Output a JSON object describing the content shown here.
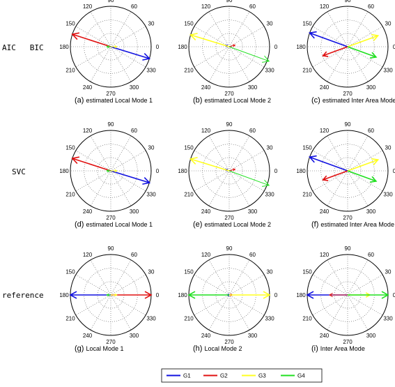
{
  "row_labels": {
    "row1": "AIC   BIC",
    "row2": "SVC",
    "row3": "reference"
  },
  "angle_labels": [
    "90",
    "60",
    "30",
    "0",
    "330",
    "300",
    "270",
    "240",
    "210",
    "180",
    "150",
    "120"
  ],
  "panels": [
    {
      "letter": "(a)",
      "title": "estimated Local Mode 1",
      "arrows": [
        {
          "series": "G1",
          "angle": -17,
          "r": 1.0
        },
        {
          "series": "G2",
          "angle": 162,
          "r": 1.0
        },
        {
          "series": "G3",
          "angle": 0,
          "r": 0.15
        },
        {
          "series": "G4",
          "angle": 180,
          "r": 0.1
        }
      ]
    },
    {
      "letter": "(b)",
      "title": "estimated Local Mode 2",
      "arrows": [
        {
          "series": "G1",
          "angle": 160,
          "r": 0.1
        },
        {
          "series": "G2",
          "angle": 15,
          "r": 0.15
        },
        {
          "series": "G3",
          "angle": 163,
          "r": 1.0
        },
        {
          "series": "G4",
          "angle": -20,
          "r": 1.05
        }
      ]
    },
    {
      "letter": "(c)",
      "title": "estimated Inter Area Mode",
      "arrows": [
        {
          "series": "G1",
          "angle": 160,
          "r": 1.0
        },
        {
          "series": "G2",
          "angle": 200,
          "r": 0.65
        },
        {
          "series": "G3",
          "angle": 20,
          "r": 0.8
        },
        {
          "series": "G4",
          "angle": -20,
          "r": 0.75
        }
      ]
    },
    {
      "letter": "(d)",
      "title": "estimated Local Mode 1",
      "arrows": [
        {
          "series": "G1",
          "angle": -17,
          "r": 1.0
        },
        {
          "series": "G2",
          "angle": 162,
          "r": 1.0
        },
        {
          "series": "G3",
          "angle": 0,
          "r": 0.15
        },
        {
          "series": "G4",
          "angle": 180,
          "r": 0.1
        }
      ]
    },
    {
      "letter": "(e)",
      "title": "estimated Local Mode 2",
      "arrows": [
        {
          "series": "G1",
          "angle": 160,
          "r": 0.1
        },
        {
          "series": "G2",
          "angle": 15,
          "r": 0.15
        },
        {
          "series": "G3",
          "angle": 163,
          "r": 1.0
        },
        {
          "series": "G4",
          "angle": -20,
          "r": 1.05
        }
      ]
    },
    {
      "letter": "(f)",
      "title": "estimated Inter Area Mode",
      "arrows": [
        {
          "series": "G1",
          "angle": 160,
          "r": 1.0
        },
        {
          "series": "G2",
          "angle": 200,
          "r": 0.65
        },
        {
          "series": "G3",
          "angle": 20,
          "r": 0.8
        },
        {
          "series": "G4",
          "angle": -20,
          "r": 0.75
        }
      ]
    },
    {
      "letter": "(g)",
      "title": "Local Mode 1",
      "arrows": [
        {
          "series": "G1",
          "angle": 180,
          "r": 1.0
        },
        {
          "series": "G2",
          "angle": 0,
          "r": 1.0
        },
        {
          "series": "G3",
          "angle": 0,
          "r": 0.15
        },
        {
          "series": "G4",
          "angle": 180,
          "r": 0.1
        }
      ]
    },
    {
      "letter": "(h)",
      "title": "Local Mode 2",
      "arrows": [
        {
          "series": "G1",
          "angle": 180,
          "r": 0.05
        },
        {
          "series": "G2",
          "angle": 0,
          "r": 0.08
        },
        {
          "series": "G3",
          "angle": 0,
          "r": 1.0
        },
        {
          "series": "G4",
          "angle": 180,
          "r": 1.0
        }
      ]
    },
    {
      "letter": "(i)",
      "title": "Inter Area Mode",
      "arrows": [
        {
          "series": "G1",
          "angle": 180,
          "r": 1.0
        },
        {
          "series": "G2",
          "angle": 180,
          "r": 0.45
        },
        {
          "series": "G3",
          "angle": 0,
          "r": 0.55
        },
        {
          "series": "G4",
          "angle": 0,
          "r": 1.0
        }
      ]
    }
  ],
  "legend": [
    {
      "name": "G1",
      "color": "#1010e0"
    },
    {
      "name": "G2",
      "color": "#e01010"
    },
    {
      "name": "G3",
      "color": "#ffff20"
    },
    {
      "name": "G4",
      "color": "#20e020"
    }
  ]
}
